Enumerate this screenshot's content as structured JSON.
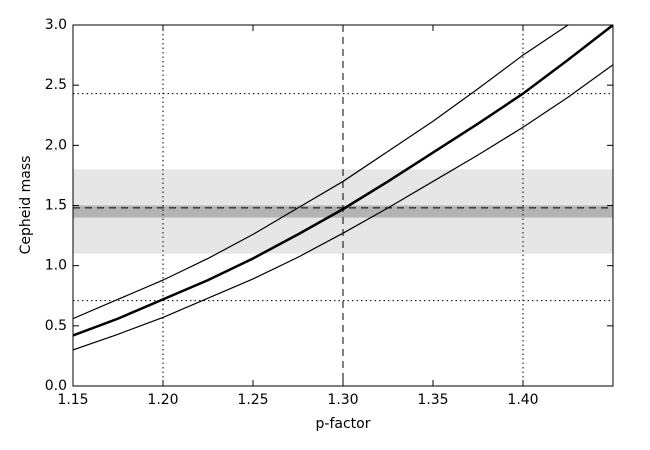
{
  "chart_data": {
    "type": "line",
    "xlabel": "p-factor",
    "ylabel": "Cepheid mass",
    "xlim": [
      1.15,
      1.45
    ],
    "ylim": [
      0,
      3.0
    ],
    "xticks": [
      1.15,
      {
        "value": 1.2,
        "label": "1.20"
      },
      1.25,
      {
        "value": 1.3,
        "label": "1.30"
      },
      1.35,
      {
        "value": 1.4,
        "label": "1.40"
      }
    ],
    "yticks": [
      {
        "value": 0,
        "label": "0.0"
      },
      0.5,
      {
        "value": 1,
        "label": "1.0"
      },
      1.5,
      {
        "value": 2,
        "label": "2.0"
      },
      2.5,
      {
        "value": 3,
        "label": "3.0"
      }
    ],
    "bands": [
      {
        "range": [
          1.1,
          1.8
        ],
        "color": "#e6e6e6"
      },
      {
        "range": [
          1.4,
          1.5
        ],
        "color": "#b3b3b3"
      }
    ],
    "reference_lines": [
      {
        "axis": "y",
        "value": 1.48,
        "style": "dashed"
      },
      {
        "axis": "x",
        "value": 1.3,
        "style": "dashed"
      },
      {
        "axis": "x",
        "value": 1.2,
        "style": "dotted"
      },
      {
        "axis": "x",
        "value": 1.4,
        "style": "dotted"
      },
      {
        "axis": "y",
        "value": 2.43,
        "style": "dotted"
      },
      {
        "axis": "y",
        "value": 0.71,
        "style": "dotted"
      }
    ],
    "x": [
      1.15,
      1.175,
      1.2,
      1.225,
      1.25,
      1.275,
      1.3,
      1.325,
      1.35,
      1.375,
      1.4,
      1.425,
      1.45
    ],
    "series": [
      {
        "color": "#000000",
        "width": 2.5,
        "values": [
          0.42,
          0.56,
          0.72,
          0.88,
          1.06,
          1.26,
          1.47,
          1.7,
          1.94,
          2.18,
          2.43,
          2.71,
          3.0
        ]
      },
      {
        "color": "#000000",
        "width": 1.2,
        "values": [
          0.56,
          0.72,
          0.88,
          1.06,
          1.26,
          1.48,
          1.7,
          1.95,
          2.2,
          2.47,
          2.75,
          3.0,
          null
        ]
      },
      {
        "color": "#000000",
        "width": 1.2,
        "values": [
          0.3,
          0.43,
          0.57,
          0.73,
          0.89,
          1.07,
          1.27,
          1.48,
          1.7,
          1.92,
          2.15,
          2.4,
          2.67
        ]
      }
    ]
  }
}
